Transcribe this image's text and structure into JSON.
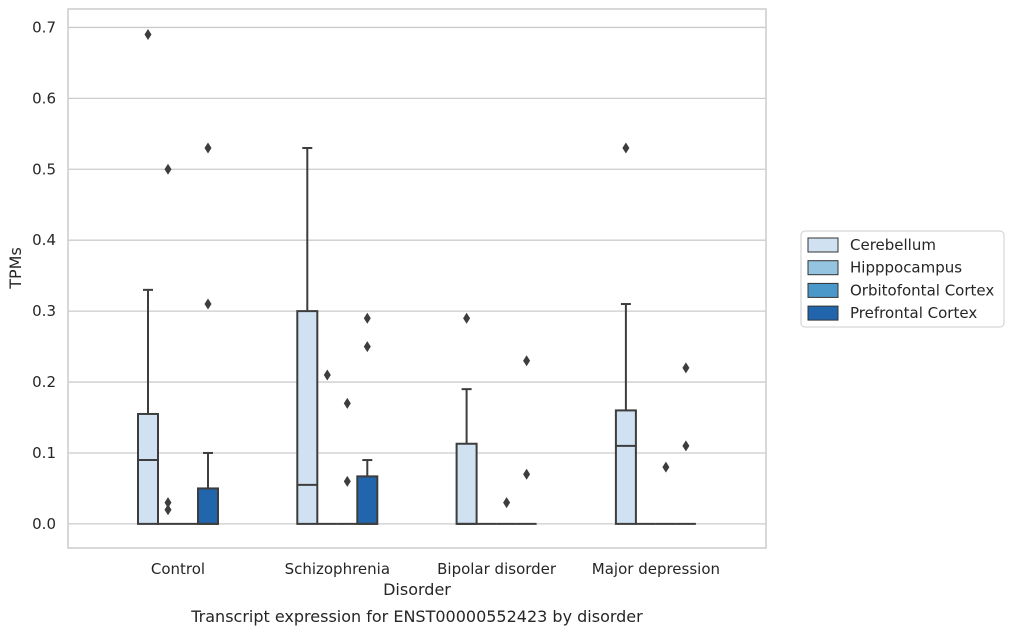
{
  "chart_data": {
    "type": "box",
    "xlabel": "Disorder",
    "ylabel": "TPMs",
    "caption": "Transcript expression for ENST00000552423 by disorder",
    "ylim": [
      -0.034,
      0.726
    ],
    "yticks": [
      "0.0",
      "0.1",
      "0.2",
      "0.3",
      "0.4",
      "0.5",
      "0.6",
      "0.7"
    ],
    "grid": "horizontal",
    "legend_position": "right",
    "categories": [
      "Control",
      "Schizophrenia",
      "Bipolar disorder",
      "Major depression"
    ],
    "series": [
      {
        "name": "Cerebellum",
        "color": "#d0e1f2",
        "boxes": [
          {
            "whislo": 0,
            "q1": 0,
            "med": 0.09,
            "q3": 0.155,
            "whishi": 0.33,
            "fliers": [
              0.69
            ]
          },
          {
            "whislo": 0,
            "q1": 0,
            "med": 0.055,
            "q3": 0.3,
            "whishi": 0.53,
            "fliers": []
          },
          {
            "whislo": 0,
            "q1": 0,
            "med": 0,
            "q3": 0.113,
            "whishi": 0.19,
            "fliers": [
              0.29
            ]
          },
          {
            "whislo": 0,
            "q1": 0,
            "med": 0.11,
            "q3": 0.16,
            "whishi": 0.31,
            "fliers": [
              0.53
            ]
          }
        ]
      },
      {
        "name": "Hipppocampus",
        "color": "#94c4df",
        "boxes": [
          {
            "whislo": 0,
            "q1": 0,
            "med": 0,
            "q3": 0,
            "whishi": 0,
            "fliers": [
              0.5,
              0.03,
              0.02
            ]
          },
          {
            "whislo": 0,
            "q1": 0,
            "med": 0,
            "q3": 0,
            "whishi": 0,
            "fliers": [
              0.21
            ]
          },
          {
            "whislo": 0,
            "q1": 0,
            "med": 0,
            "q3": 0,
            "whishi": 0,
            "fliers": []
          },
          {
            "whislo": 0,
            "q1": 0,
            "med": 0,
            "q3": 0,
            "whishi": 0,
            "fliers": []
          }
        ]
      },
      {
        "name": "Orbitofontal Cortex",
        "color": "#4a98c9",
        "boxes": [
          {
            "whislo": 0,
            "q1": 0,
            "med": 0,
            "q3": 0,
            "whishi": 0,
            "fliers": []
          },
          {
            "whislo": 0,
            "q1": 0,
            "med": 0,
            "q3": 0,
            "whishi": 0,
            "fliers": [
              0.17,
              0.06
            ]
          },
          {
            "whislo": 0,
            "q1": 0,
            "med": 0,
            "q3": 0,
            "whishi": 0,
            "fliers": [
              0.03
            ]
          },
          {
            "whislo": 0,
            "q1": 0,
            "med": 0,
            "q3": 0,
            "whishi": 0,
            "fliers": [
              0.08
            ]
          }
        ]
      },
      {
        "name": "Prefrontal Cortex",
        "color": "#2166ac",
        "boxes": [
          {
            "whislo": 0,
            "q1": 0,
            "med": 0,
            "q3": 0.05,
            "whishi": 0.1,
            "fliers": [
              0.53,
              0.31
            ]
          },
          {
            "whislo": 0,
            "q1": 0,
            "med": 0,
            "q3": 0.067,
            "whishi": 0.09,
            "fliers": [
              0.29,
              0.25
            ]
          },
          {
            "whislo": 0,
            "q1": 0,
            "med": 0,
            "q3": 0,
            "whishi": 0,
            "fliers": [
              0.23,
              0.07
            ]
          },
          {
            "whislo": 0,
            "q1": 0,
            "med": 0,
            "q3": 0,
            "whishi": 0,
            "fliers": [
              0.22,
              0.11
            ]
          }
        ]
      }
    ]
  }
}
